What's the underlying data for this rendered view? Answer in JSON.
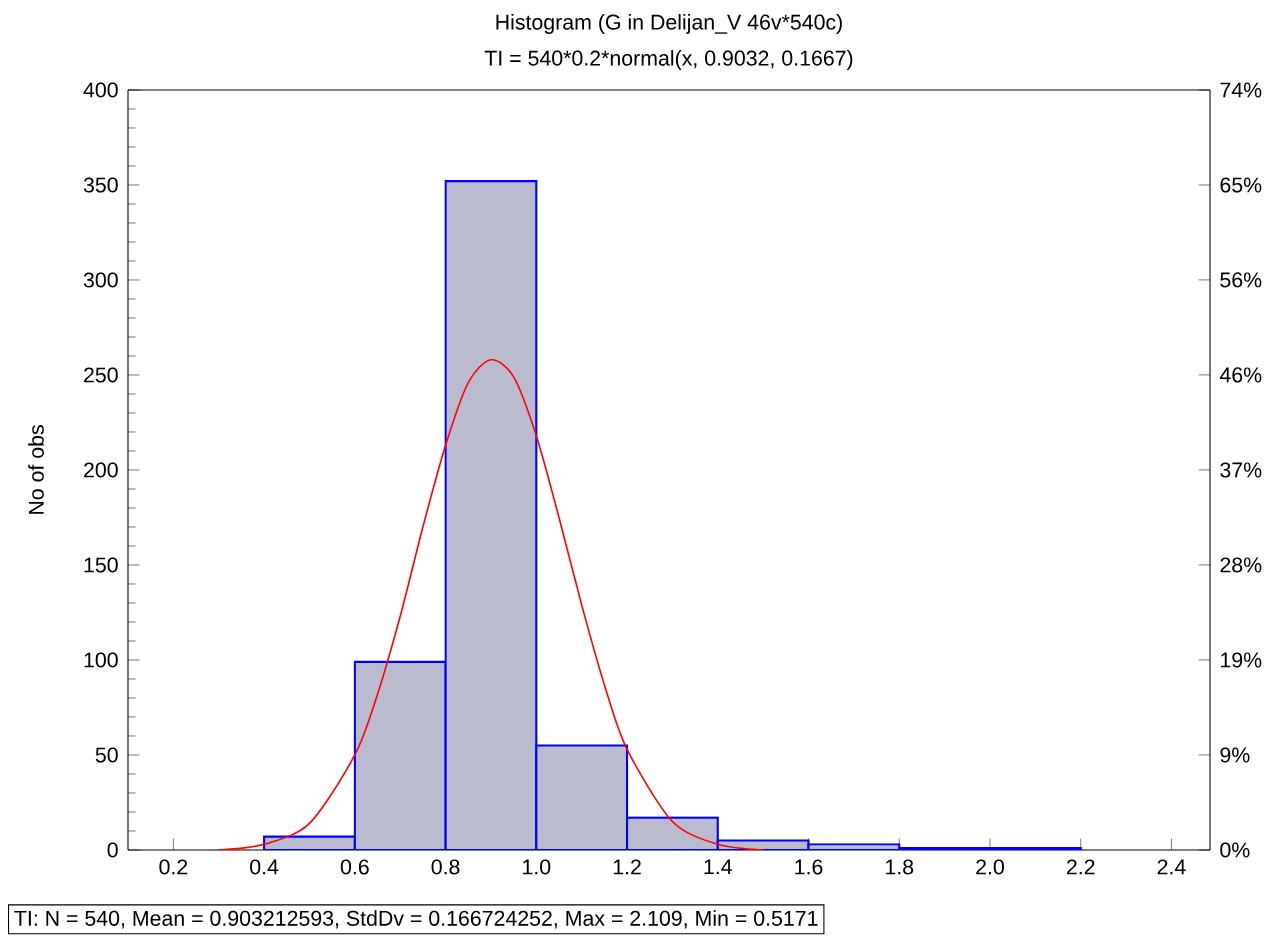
{
  "chart_data": {
    "type": "histogram",
    "title": "Histogram (G in Delijan_V 46v*540c)",
    "subtitle": "TI = 540*0.2*normal(x, 0.9032, 0.1667)",
    "ylabel": "No of obs",
    "series": [
      {
        "color": "#0000ff",
        "bins": [
          0.4,
          0.6,
          0.8,
          1.0,
          1.2,
          1.4,
          1.6,
          1.8,
          2.0,
          2.2
        ],
        "values": [
          7,
          99,
          352,
          55,
          17,
          5,
          3,
          1,
          1
        ]
      },
      {
        "type": "line",
        "color": "#ff0000",
        "x": [
          0.3,
          0.4,
          0.5,
          0.6,
          0.65,
          0.7,
          0.75,
          0.8,
          0.85,
          0.9,
          0.95,
          1.0,
          1.05,
          1.1,
          1.15,
          1.2,
          1.3,
          1.4,
          1.5
        ],
        "values": [
          0,
          3,
          14,
          50,
          82,
          123,
          170,
          213,
          246,
          258,
          249,
          218,
          175,
          129,
          87,
          53,
          15,
          3,
          0
        ]
      }
    ],
    "xlim": [
      0.1,
      2.485
    ],
    "xticks": [
      0.2,
      0.4,
      0.6,
      0.8,
      {
        "value": 1.0,
        "label": "1.0"
      },
      1.2,
      1.4,
      1.6,
      1.8,
      {
        "value": 2.0,
        "label": "2.0"
      },
      2.2,
      2.4
    ],
    "ylim": [
      0,
      400
    ],
    "yticks": [
      0,
      50,
      100,
      150,
      200,
      250,
      300,
      350,
      400
    ],
    "y2lim": [
      0,
      74.07
    ],
    "y2ticks": [
      {
        "value": 0,
        "label": "0%"
      },
      {
        "value": 9.26,
        "label": "9%"
      },
      {
        "value": 18.52,
        "label": "19%"
      },
      {
        "value": 27.78,
        "label": "28%"
      },
      {
        "value": 37.04,
        "label": "37%"
      },
      {
        "value": 46.3,
        "label": "46%"
      },
      {
        "value": 55.56,
        "label": "56%"
      },
      {
        "value": 64.81,
        "label": "65%"
      },
      {
        "value": 74.07,
        "label": "74%"
      }
    ],
    "annotations": [
      "TI:  N = 540, Mean = 0.903212593, StdDv = 0.166724252, Max = 2.109, Min = 0.5171"
    ],
    "grid": false
  }
}
